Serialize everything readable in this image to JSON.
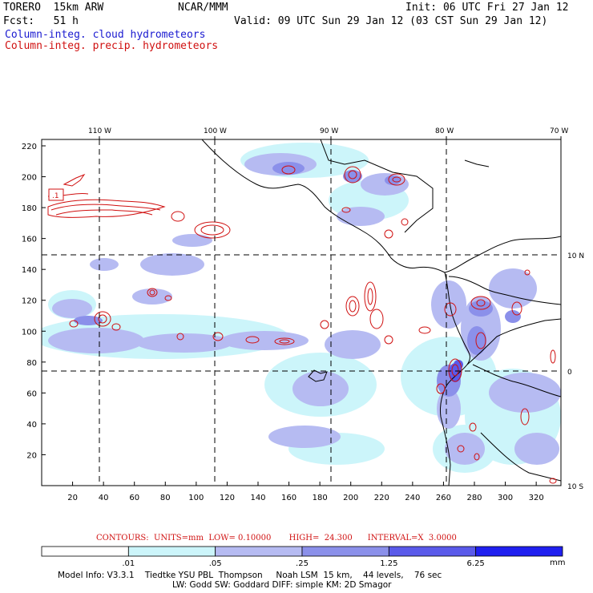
{
  "header": {
    "model": "TORERO  15km ARW",
    "org": "NCAR/MMM",
    "init": "Init: 06 UTC Fri 27 Jan 12",
    "fcst": "Fcst:   51 h",
    "valid": "Valid: 09 UTC Sun 29 Jan 12 (03 CST Sun 29 Jan 12)",
    "field1": "Column-integ. cloud hydrometeors",
    "field2": "Column-integ. precip. hydrometeors"
  },
  "colors": {
    "cloud_label": "#1a1ad0",
    "precip_label": "#d01010",
    "precip_contour": "#d01010",
    "fill_levels": [
      "#ffffff",
      "#ccf5fa",
      "#b6bbf2",
      "#8b90ea",
      "#5a5aea",
      "#2020f0"
    ]
  },
  "map": {
    "top_labels": [
      "110 W",
      "100 W",
      "90 W",
      "80 W",
      "70 W"
    ],
    "right_labels": [
      "10 N",
      "0",
      "10 S"
    ],
    "y_ticks": [
      "220",
      "200",
      "180",
      "160",
      "140",
      "120",
      "100",
      "80",
      "60",
      "40",
      "20"
    ],
    "x_ticks": [
      "20",
      "40",
      "60",
      "80",
      "100",
      "120",
      "140",
      "160",
      "180",
      "200",
      "220",
      "240",
      "260",
      "280",
      "300",
      "320"
    ],
    "box_label": ".1"
  },
  "legend": {
    "contours": "CONTOURS:  UNITS=mm  LOW= 0.10000       HIGH=  24.300      INTERVAL=X  3.0000",
    "ticks": [
      ".01",
      ".05",
      ".25",
      "1.25",
      "6.25"
    ],
    "units": "mm"
  },
  "footer": {
    "line1": "Model Info: V3.3.1    Tiedtke YSU PBL  Thompson     Noah LSM  15 km,    44 levels,    76 sec",
    "line2": "LW: Godd SW: Goddard DIFF: simple KM: 2D Smagor"
  }
}
